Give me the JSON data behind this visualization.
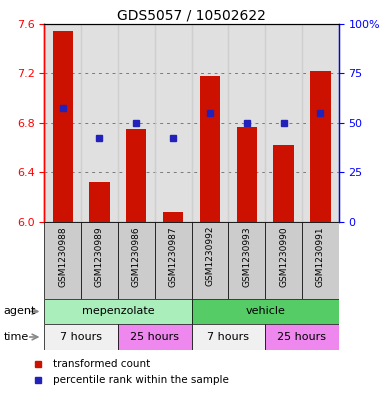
{
  "title": "GDS5057 / 10502622",
  "samples": [
    "GSM1230988",
    "GSM1230989",
    "GSM1230986",
    "GSM1230987",
    "GSM1230992",
    "GSM1230993",
    "GSM1230990",
    "GSM1230991"
  ],
  "bar_values": [
    7.54,
    6.32,
    6.75,
    6.08,
    7.18,
    6.77,
    6.62,
    7.22
  ],
  "bar_base": 6.0,
  "blue_dot_values": [
    6.92,
    6.68,
    6.8,
    6.68,
    6.88,
    6.8,
    6.8,
    6.88
  ],
  "ylim_left": [
    6.0,
    7.6
  ],
  "ylim_right": [
    0,
    100
  ],
  "yticks_left": [
    6.0,
    6.4,
    6.8,
    7.2,
    7.6
  ],
  "yticks_right": [
    0,
    25,
    50,
    75,
    100
  ],
  "bar_color": "#cc1100",
  "dot_color": "#2222bb",
  "agent_groups": [
    {
      "label": "mepenzolate",
      "start": 0,
      "end": 4,
      "color": "#aaeebb"
    },
    {
      "label": "vehicle",
      "start": 4,
      "end": 8,
      "color": "#55cc66"
    }
  ],
  "time_groups": [
    {
      "label": "7 hours",
      "start": 0,
      "end": 2,
      "color": "#f0f0f0"
    },
    {
      "label": "25 hours",
      "start": 2,
      "end": 4,
      "color": "#ee88ee"
    },
    {
      "label": "7 hours",
      "start": 4,
      "end": 6,
      "color": "#f0f0f0"
    },
    {
      "label": "25 hours",
      "start": 6,
      "end": 8,
      "color": "#ee88ee"
    }
  ],
  "legend_items": [
    {
      "label": "transformed count",
      "color": "#cc1100"
    },
    {
      "label": "percentile rank within the sample",
      "color": "#2222bb"
    }
  ],
  "xlabel_agent": "agent",
  "xlabel_time": "time",
  "sample_bg_color": "#cccccc",
  "plot_bg_color": "#ffffff"
}
